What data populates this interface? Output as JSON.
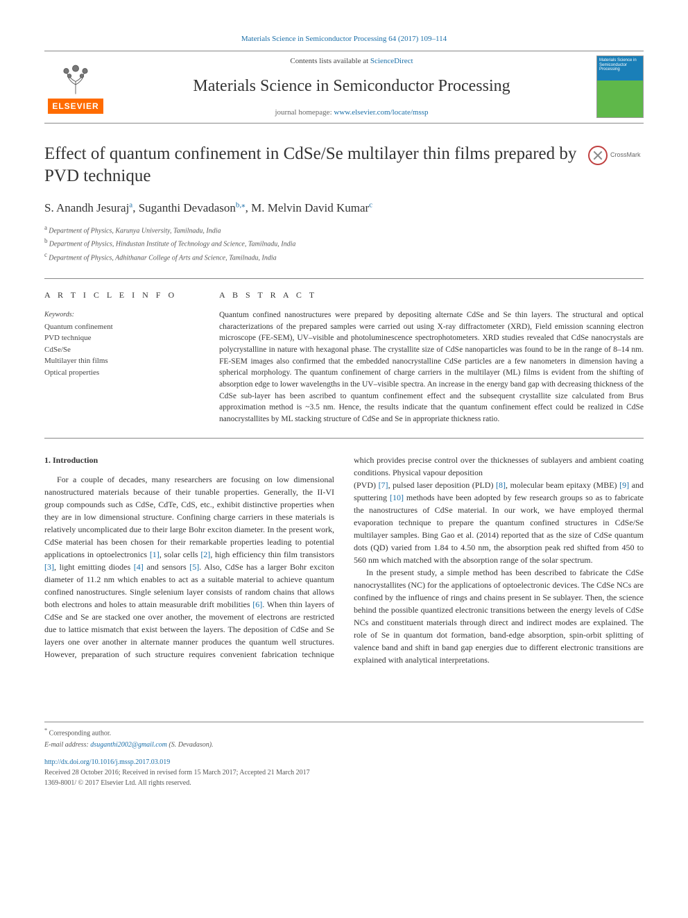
{
  "header": {
    "top_citation_link_text": "Materials Science in Semiconductor Processing 64 (2017) 109–114",
    "contents_prefix": "Contents lists available at ",
    "contents_link": "ScienceDirect",
    "journal_name": "Materials Science in Semiconductor Processing",
    "homepage_prefix": "journal homepage: ",
    "homepage_link": "www.elsevier.com/locate/mssp",
    "elsevier_label": "ELSEVIER",
    "crossmark_label": "CrossMark",
    "cover_text": "Materials Science in Semiconductor Processing"
  },
  "colors": {
    "link": "#1b6fa8",
    "elsevier_orange": "#ff6b00",
    "text": "#333333",
    "rule": "#888888"
  },
  "article": {
    "title": "Effect of quantum confinement in CdSe/Se multilayer thin films prepared by PVD technique",
    "authors_html": "S. Anandh Jesuraj<sup>a</sup>, Suganthi Devadason<sup>b,*</sup>, M. Melvin David Kumar<sup>c</sup>",
    "authors": [
      {
        "name": "S. Anandh Jesuraj",
        "aff": "a"
      },
      {
        "name": "Suganthi Devadason",
        "aff": "b",
        "corr": true
      },
      {
        "name": "M. Melvin David Kumar",
        "aff": "c"
      }
    ],
    "affiliations": [
      {
        "sup": "a",
        "text": "Department of Physics, Karunya University, Tamilnadu, India"
      },
      {
        "sup": "b",
        "text": "Department of Physics, Hindustan Institute of Technology and Science, Tamilnadu, India"
      },
      {
        "sup": "c",
        "text": "Department of Physics, Adhithanar College of Arts and Science, Tamilnadu, India"
      }
    ]
  },
  "article_info": {
    "heading": "A R T I C L E   I N F O",
    "keywords_label": "Keywords:",
    "keywords": [
      "Quantum confinement",
      "PVD technique",
      "CdSe/Se",
      "Multilayer thin films",
      "Optical properties"
    ]
  },
  "abstract": {
    "heading": "A B S T R A C T",
    "text": "Quantum confined nanostructures were prepared by depositing alternate CdSe and Se thin layers. The structural and optical characterizations of the prepared samples were carried out using X-ray diffractometer (XRD), Field emission scanning electron microscope (FE-SEM), UV–visible and photoluminescence spectrophotometers. XRD studies revealed that CdSe nanocrystals are polycrystalline in nature with hexagonal phase. The crystallite size of CdSe nanoparticles was found to be in the range of 8–14 nm. FE-SEM images also confirmed that the embedded nanocrystalline CdSe particles are a few nanometers in dimension having a spherical morphology. The quantum confinement of charge carriers in the multilayer (ML) films is evident from the shifting of absorption edge to lower wavelengths in the UV–visible spectra. An increase in the energy band gap with decreasing thickness of the CdSe sub-layer has been ascribed to quantum confinement effect and the subsequent crystallite size calculated from Brus approximation method is ~3.5 nm. Hence, the results indicate that the quantum confinement effect could be realized in CdSe nanocrystallites by ML stacking structure of CdSe and Se in appropriate thickness ratio."
  },
  "body": {
    "section_number": "1.",
    "section_title": "Introduction",
    "para1": "For a couple of decades, many researchers are focusing on low dimensional nanostructured materials because of their tunable properties. Generally, the II-VI group compounds such as CdSe, CdTe, CdS, etc., exhibit distinctive properties when they are in low dimensional structure. Confining charge carriers in these materials is relatively uncomplicated due to their large Bohr exciton diameter. In the present work, CdSe material has been chosen for their remarkable properties leading to potential applications in optoelectronics [1], solar cells [2], high efficiency thin film transistors [3], light emitting diodes [4] and sensors [5]. Also, CdSe has a larger Bohr exciton diameter of 11.2 nm which enables to act as a suitable material to achieve quantum confined nanostructures. Single selenium layer consists of random chains that allows both electrons and holes to attain measurable drift mobilities [6]. When thin layers of CdSe and Se are stacked one over another, the movement of electrons are restricted due to lattice mismatch that exist between the layers. The deposition of CdSe and Se layers one over another in alternate manner produces the quantum well structures. However, preparation of such structure requires convenient fabrication technique which provides precise control over the thicknesses of sublayers and ambient coating conditions. Physical vapour deposition",
    "para2": "(PVD) [7], pulsed laser deposition (PLD) [8], molecular beam epitaxy (MBE) [9] and sputtering [10] methods have been adopted by few research groups so as to fabricate the nanostructures of CdSe material. In our work, we have employed thermal evaporation technique to prepare the quantum confined structures in CdSe/Se multilayer samples. Bing Gao et al. (2014) reported that as the size of CdSe quantum dots (QD) varied from 1.84 to 4.50 nm, the absorption peak red shifted from 450 to 560 nm which matched with the absorption range of the solar spectrum.",
    "para3": "In the present study, a simple method has been described to fabricate the CdSe nanocrystallites (NC) for the applications of optoelectronic devices. The CdSe NCs are confined by the influence of rings and chains present in Se sublayer. Then, the science behind the possible quantized electronic transitions between the energy levels of CdSe NCs and constituent materials through direct and indirect modes are explained. The role of Se in quantum dot formation, band-edge absorption, spin-orbit splitting of valence band and shift in band gap energies due to different electronic transitions are explained with analytical interpretations.",
    "refs": [
      "[1]",
      "[2]",
      "[3]",
      "[4]",
      "[5]",
      "[6]",
      "[7]",
      "[8]",
      "[9]",
      "[10]"
    ]
  },
  "footer": {
    "corr_symbol": "*",
    "corr_text": "Corresponding author.",
    "email_label": "E-mail address: ",
    "email": "dsuganthi2002@gmail.com",
    "email_attribution": " (S. Devadason).",
    "doi_link": "http://dx.doi.org/10.1016/j.mssp.2017.03.019",
    "dates": "Received 28 October 2016; Received in revised form 15 March 2017; Accepted 21 March 2017",
    "copyright": "1369-8001/ © 2017 Elsevier Ltd. All rights reserved."
  }
}
